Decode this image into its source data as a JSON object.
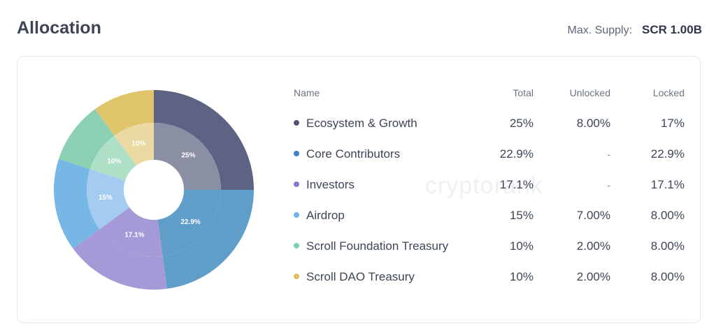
{
  "header": {
    "title": "Allocation",
    "supply_label": "Max. Supply:",
    "supply_value": "SCR 1.00B"
  },
  "watermark": "cryptorank",
  "table": {
    "headers": {
      "name": "Name",
      "total": "Total",
      "unlocked": "Unlocked",
      "locked": "Locked"
    },
    "rows": [
      {
        "name": "Ecosystem & Growth",
        "color": "#4f5675",
        "total": "25%",
        "unlocked": "8.00%",
        "locked": "17%"
      },
      {
        "name": "Core Contributors",
        "color": "#3b82c4",
        "total": "22.9%",
        "unlocked": "-",
        "locked": "22.9%"
      },
      {
        "name": "Investors",
        "color": "#8b77cc",
        "total": "17.1%",
        "unlocked": "-",
        "locked": "17.1%"
      },
      {
        "name": "Airdrop",
        "color": "#6cb4ea",
        "total": "15%",
        "unlocked": "7.00%",
        "locked": "8.00%"
      },
      {
        "name": "Scroll Foundation Treasury",
        "color": "#7fcfae",
        "total": "10%",
        "unlocked": "2.00%",
        "locked": "8.00%"
      },
      {
        "name": "Scroll DAO Treasury",
        "color": "#e0c060",
        "total": "10%",
        "unlocked": "2.00%",
        "locked": "8.00%"
      }
    ]
  },
  "chart_data": {
    "type": "pie",
    "categories": [
      "Ecosystem & Growth",
      "Core Contributors",
      "Investors",
      "Airdrop",
      "Scroll Foundation Treasury",
      "Scroll DAO Treasury"
    ],
    "values": [
      25,
      22.9,
      17.1,
      15,
      10,
      10
    ],
    "data_labels": [
      "25%",
      "22.9%",
      "17.1%",
      "15%",
      "10%",
      "10%"
    ],
    "unlocked_values": [
      8,
      0,
      0,
      7,
      2,
      2
    ],
    "colors": {
      "outer": [
        "#5c6383",
        "#5f9ec9",
        "#a699d7",
        "#76b7e6",
        "#8bd0b3",
        "#e0c56c"
      ],
      "inner": [
        "#8b8fa3",
        "#5f9ec9",
        "#a699d7",
        "#a3ccf0",
        "#aedfc7",
        "#ead9a0"
      ]
    }
  }
}
